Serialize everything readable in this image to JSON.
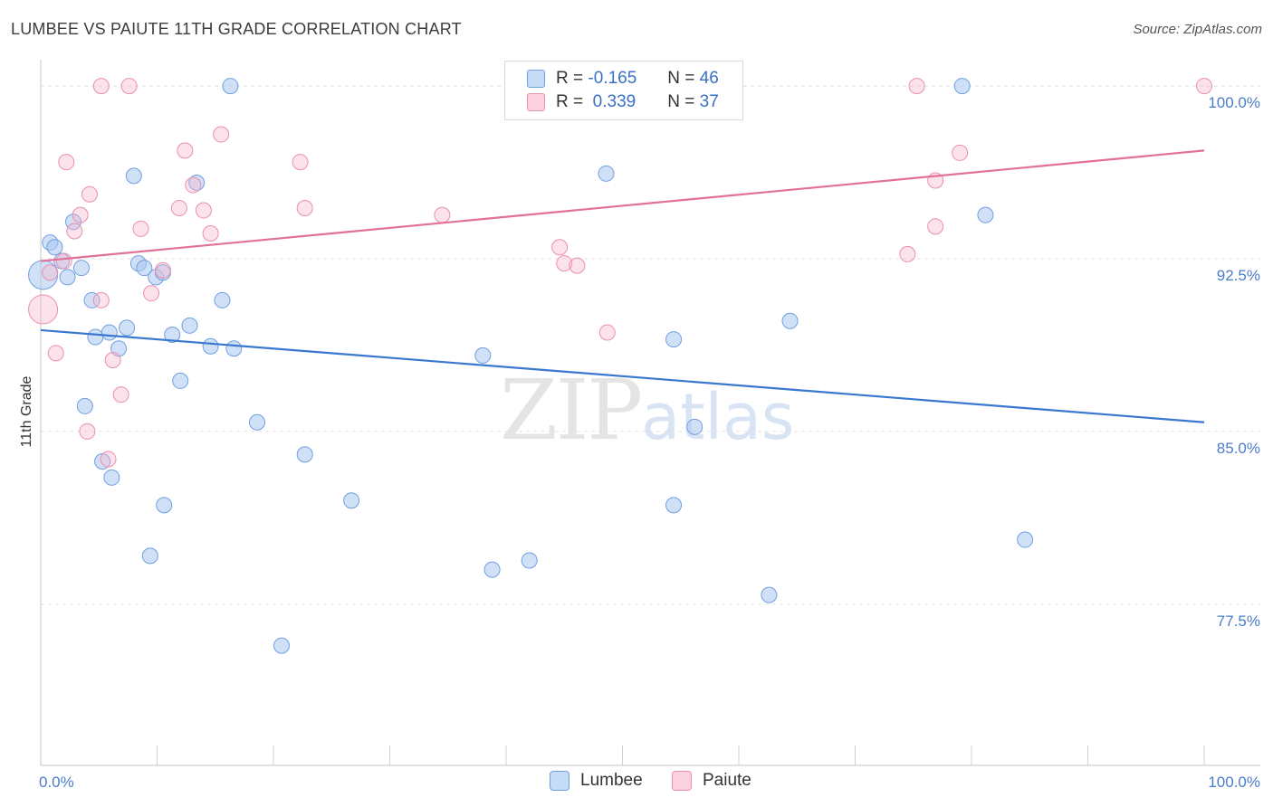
{
  "header": {
    "title": "LUMBEE VS PAIUTE 11TH GRADE CORRELATION CHART",
    "source": "Source: ZipAtlas.com"
  },
  "watermark": {
    "zip": "ZIP",
    "atlas": "atlas"
  },
  "legend": {
    "rows": [
      {
        "r_label": "R =",
        "r_value": "-0.165",
        "n_label": "N =",
        "n_value": "46"
      },
      {
        "r_label": "R =",
        "r_value": " 0.339",
        "n_label": "N =",
        "n_value": "37"
      }
    ]
  },
  "bottom_legend": {
    "lumbee": "Lumbee",
    "paiute": "Paiute"
  },
  "chart_data": {
    "type": "scatter",
    "title": "LUMBEE VS PAIUTE 11TH GRADE CORRELATION CHART",
    "xlabel": "",
    "ylabel": "11th Grade",
    "xlim": [
      0,
      100
    ],
    "ylim": [
      70.5,
      101.3
    ],
    "x_tick_labels": [
      "0.0%",
      "100.0%"
    ],
    "y_ticks": [
      77.5,
      85.0,
      92.5,
      100.0
    ],
    "y_tick_labels": [
      "77.5%",
      "85.0%",
      "92.5%",
      "100.0%"
    ],
    "grid": true,
    "colors": {
      "lumbee": "#a9c8f0",
      "lumbee_line": "#3a78d0",
      "paiute": "#f7b7cb",
      "paiute_line": "#e2709a"
    },
    "series": [
      {
        "name": "Lumbee",
        "r": -0.165,
        "n": 46,
        "trend": {
          "x": [
            0,
            100
          ],
          "y": [
            89.4,
            85.4
          ]
        },
        "points": [
          {
            "x": 0.2,
            "y": 91.8,
            "big": true
          },
          {
            "x": 0.8,
            "y": 93.2
          },
          {
            "x": 1.2,
            "y": 93.0
          },
          {
            "x": 1.8,
            "y": 92.4
          },
          {
            "x": 2.3,
            "y": 91.7
          },
          {
            "x": 2.8,
            "y": 94.1
          },
          {
            "x": 3.5,
            "y": 92.1
          },
          {
            "x": 3.8,
            "y": 86.1
          },
          {
            "x": 4.4,
            "y": 90.7
          },
          {
            "x": 4.7,
            "y": 89.1
          },
          {
            "x": 5.3,
            "y": 83.7
          },
          {
            "x": 5.9,
            "y": 89.3
          },
          {
            "x": 6.1,
            "y": 83.0
          },
          {
            "x": 6.7,
            "y": 88.6
          },
          {
            "x": 7.4,
            "y": 89.5
          },
          {
            "x": 8.0,
            "y": 96.1
          },
          {
            "x": 8.4,
            "y": 92.3
          },
          {
            "x": 8.9,
            "y": 92.1
          },
          {
            "x": 9.4,
            "y": 79.6
          },
          {
            "x": 9.9,
            "y": 91.7
          },
          {
            "x": 10.5,
            "y": 91.9
          },
          {
            "x": 10.6,
            "y": 81.8
          },
          {
            "x": 11.3,
            "y": 89.2
          },
          {
            "x": 12.0,
            "y": 87.2
          },
          {
            "x": 12.8,
            "y": 89.6
          },
          {
            "x": 13.4,
            "y": 95.8
          },
          {
            "x": 14.6,
            "y": 88.7
          },
          {
            "x": 15.6,
            "y": 90.7
          },
          {
            "x": 16.3,
            "y": 100.0
          },
          {
            "x": 16.6,
            "y": 88.6
          },
          {
            "x": 18.6,
            "y": 85.4
          },
          {
            "x": 20.7,
            "y": 75.7
          },
          {
            "x": 22.7,
            "y": 84.0
          },
          {
            "x": 26.7,
            "y": 82.0
          },
          {
            "x": 38.0,
            "y": 88.3
          },
          {
            "x": 38.8,
            "y": 79.0
          },
          {
            "x": 42.0,
            "y": 79.4
          },
          {
            "x": 48.6,
            "y": 96.2
          },
          {
            "x": 54.4,
            "y": 89.0
          },
          {
            "x": 54.4,
            "y": 81.8
          },
          {
            "x": 56.2,
            "y": 85.2
          },
          {
            "x": 62.6,
            "y": 77.9
          },
          {
            "x": 64.4,
            "y": 89.8
          },
          {
            "x": 79.2,
            "y": 100.0
          },
          {
            "x": 81.2,
            "y": 94.4
          },
          {
            "x": 84.6,
            "y": 80.3
          }
        ]
      },
      {
        "name": "Paiute",
        "r": 0.339,
        "n": 37,
        "trend": {
          "x": [
            0,
            100
          ],
          "y": [
            92.4,
            97.2
          ]
        },
        "points": [
          {
            "x": 0.2,
            "y": 90.3,
            "big": true
          },
          {
            "x": 0.8,
            "y": 91.9
          },
          {
            "x": 1.3,
            "y": 88.4
          },
          {
            "x": 2.0,
            "y": 92.4
          },
          {
            "x": 2.2,
            "y": 96.7
          },
          {
            "x": 2.9,
            "y": 93.7
          },
          {
            "x": 3.4,
            "y": 94.4
          },
          {
            "x": 4.0,
            "y": 85.0
          },
          {
            "x": 4.2,
            "y": 95.3
          },
          {
            "x": 5.2,
            "y": 90.7
          },
          {
            "x": 5.2,
            "y": 100.0
          },
          {
            "x": 5.8,
            "y": 83.8
          },
          {
            "x": 6.2,
            "y": 88.1
          },
          {
            "x": 6.9,
            "y": 86.6
          },
          {
            "x": 7.6,
            "y": 100.0
          },
          {
            "x": 8.6,
            "y": 93.8
          },
          {
            "x": 9.5,
            "y": 91.0
          },
          {
            "x": 10.5,
            "y": 92.0
          },
          {
            "x": 11.9,
            "y": 94.7
          },
          {
            "x": 12.4,
            "y": 97.2
          },
          {
            "x": 13.1,
            "y": 95.7
          },
          {
            "x": 14.0,
            "y": 94.6
          },
          {
            "x": 14.6,
            "y": 93.6
          },
          {
            "x": 15.5,
            "y": 97.9
          },
          {
            "x": 22.3,
            "y": 96.7
          },
          {
            "x": 22.7,
            "y": 94.7
          },
          {
            "x": 34.5,
            "y": 94.4
          },
          {
            "x": 44.6,
            "y": 93.0
          },
          {
            "x": 45.0,
            "y": 92.3
          },
          {
            "x": 46.1,
            "y": 92.2
          },
          {
            "x": 48.7,
            "y": 89.3
          },
          {
            "x": 75.3,
            "y": 100.0
          },
          {
            "x": 74.5,
            "y": 92.7
          },
          {
            "x": 76.9,
            "y": 93.9
          },
          {
            "x": 76.9,
            "y": 95.9
          },
          {
            "x": 79.0,
            "y": 97.1
          },
          {
            "x": 100.0,
            "y": 100.0
          }
        ]
      }
    ]
  }
}
